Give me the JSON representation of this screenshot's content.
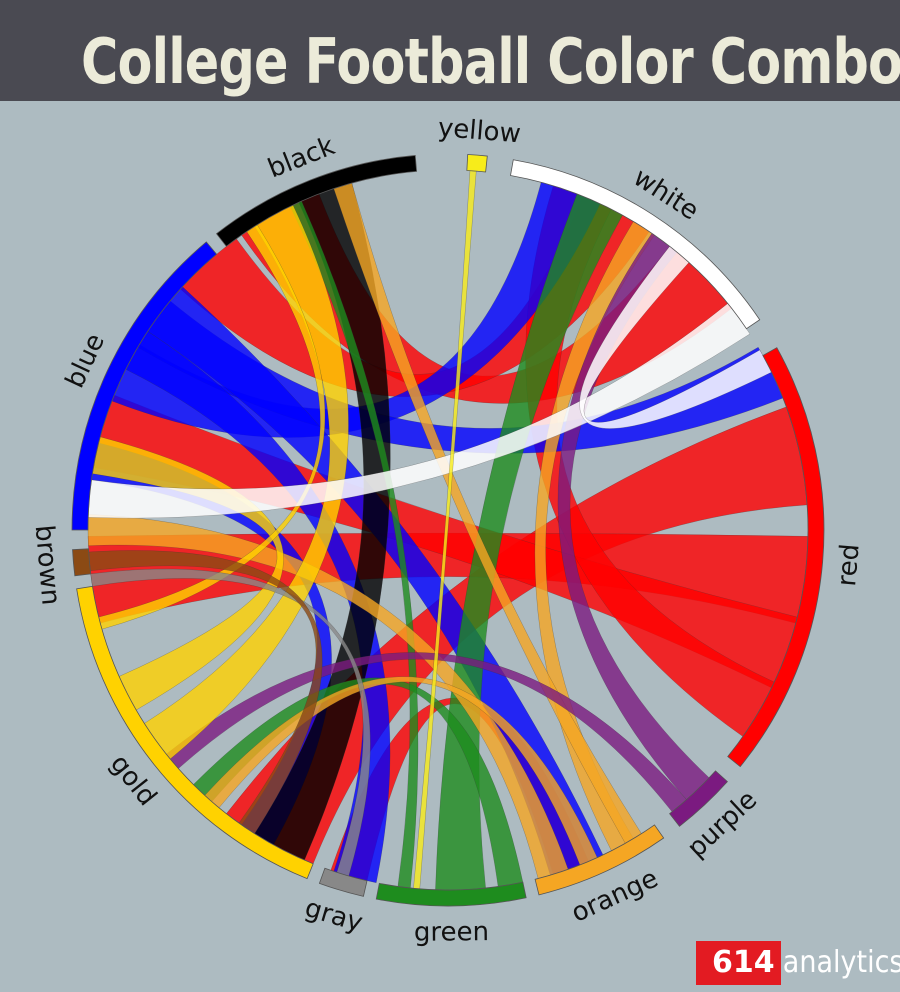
{
  "header": {
    "title": "College Football Color Combos"
  },
  "logo": {
    "number": "614",
    "word": "analytics"
  },
  "chart_data": {
    "type": "chord",
    "groups": [
      {
        "name": "yellow",
        "color": "#f7ec1a",
        "start": 3,
        "end": 6
      },
      {
        "name": "white",
        "color": "#ffffff",
        "start": 10,
        "end": 56
      },
      {
        "name": "red",
        "color": "#ff0000",
        "start": 61,
        "end": 129
      },
      {
        "name": "purple",
        "color": "#7b1a80",
        "start": 132,
        "end": 142
      },
      {
        "name": "orange",
        "color": "#f5a623",
        "start": 145,
        "end": 166
      },
      {
        "name": "green",
        "color": "#1e8c1e",
        "start": 168,
        "end": 191
      },
      {
        "name": "gray",
        "color": "#888888",
        "start": 193,
        "end": 200
      },
      {
        "name": "gold",
        "color": "#ffd200",
        "start": 202,
        "end": 261
      },
      {
        "name": "brown",
        "color": "#8b4a14",
        "start": 263,
        "end": 267
      },
      {
        "name": "blue",
        "color": "#0000ff",
        "start": 270,
        "end": 320
      },
      {
        "name": "black",
        "color": "#000000",
        "start": 322,
        "end": 355
      }
    ],
    "ribbons": [
      {
        "color": "#ff0000",
        "width": 16,
        "a": 78,
        "b": 210
      },
      {
        "color": "#ff0000",
        "width": 14,
        "a": 98,
        "b": 262
      },
      {
        "color": "#ff0000",
        "width": 12,
        "a": 110,
        "b": 286
      },
      {
        "color": "#ff0000",
        "width": 14,
        "a": 45,
        "b": 332
      },
      {
        "color": "#ff0000",
        "width": 12,
        "a": 28,
        "b": 318
      },
      {
        "color": "#ff0000",
        "width": 10,
        "a": 22,
        "b": 120
      },
      {
        "color": "#ff0000",
        "width": 6,
        "a": 160,
        "b": 196
      },
      {
        "color": "#0000ff",
        "width": 10,
        "a": 20,
        "b": 296
      },
      {
        "color": "#0000ff",
        "width": 9,
        "a": 64,
        "b": 305
      },
      {
        "color": "#0000ff",
        "width": 9,
        "a": 159,
        "b": 308
      },
      {
        "color": "#0000ff",
        "width": 7,
        "a": 195,
        "b": 300
      },
      {
        "color": "#0000ff",
        "width": 6,
        "a": 212,
        "b": 281
      },
      {
        "color": "#000000",
        "width": 9,
        "a": 208,
        "b": 340
      },
      {
        "color": "#1e8c1e",
        "width": 8,
        "a": 178,
        "b": 25
      },
      {
        "color": "#1e8c1e",
        "width": 4,
        "a": 223,
        "b": 170
      },
      {
        "color": "#1e8c1e",
        "width": 2,
        "a": 187,
        "b": 335
      },
      {
        "color": "#f5a623",
        "width": 5,
        "a": 163,
        "b": 270
      },
      {
        "color": "#f5a623",
        "width": 4,
        "a": 151,
        "b": 33
      },
      {
        "color": "#f5a623",
        "width": 3,
        "a": 149,
        "b": 343
      },
      {
        "color": "#f5a623",
        "width": 3,
        "a": 157,
        "b": 221
      },
      {
        "color": "#7b1a80",
        "width": 5,
        "a": 37,
        "b": 136
      },
      {
        "color": "#7b1a80",
        "width": 3,
        "a": 140,
        "b": 230
      },
      {
        "color": "#ffd200",
        "width": 7,
        "a": 234,
        "b": 331
      },
      {
        "color": "#ffd200",
        "width": 6,
        "a": 243,
        "b": 282
      },
      {
        "color": "#ffd200",
        "width": 2,
        "a": 255,
        "b": 327
      },
      {
        "color": "#ffffff",
        "width": 6,
        "a": 275,
        "b": 54
      },
      {
        "color": "#ffffff",
        "width": 4,
        "a": 40,
        "b": 62
      },
      {
        "color": "#888888",
        "width": 2,
        "a": 197,
        "b": 262
      },
      {
        "color": "#8b4a14",
        "width": 3,
        "a": 265,
        "b": 214
      },
      {
        "color": "#f7ec1a",
        "width": 1,
        "a": 4,
        "b": 185
      }
    ]
  }
}
